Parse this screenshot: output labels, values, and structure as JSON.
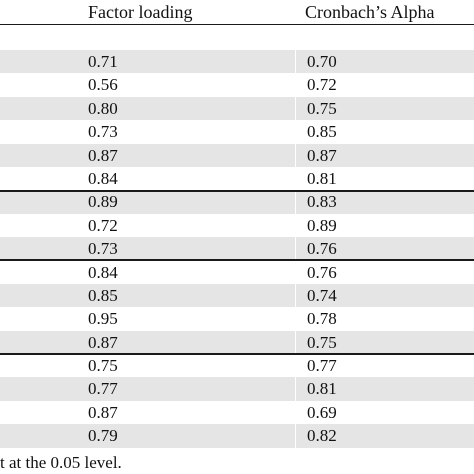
{
  "table": {
    "headers": {
      "factor_loading": "Factor loading",
      "cronbach_alpha": "Cronbach’s Alpha"
    },
    "rows": [
      {
        "factor": "0.71",
        "alpha": "0.70"
      },
      {
        "factor": "0.56",
        "alpha": "0.72"
      },
      {
        "factor": "0.80",
        "alpha": "0.75"
      },
      {
        "factor": "0.73",
        "alpha": "0.85"
      },
      {
        "factor": "0.87",
        "alpha": "0.87"
      },
      {
        "factor": "0.84",
        "alpha": "0.81"
      },
      {
        "factor": "0.89",
        "alpha": "0.83"
      },
      {
        "factor": "0.72",
        "alpha": "0.89"
      },
      {
        "factor": "0.73",
        "alpha": "0.76"
      },
      {
        "factor": "0.84",
        "alpha": "0.76"
      },
      {
        "factor": "0.85",
        "alpha": "0.74"
      },
      {
        "factor": "0.95",
        "alpha": "0.78"
      },
      {
        "factor": "0.87",
        "alpha": "0.75"
      },
      {
        "factor": "0.75",
        "alpha": "0.77"
      },
      {
        "factor": "0.77",
        "alpha": "0.81"
      },
      {
        "factor": "0.87",
        "alpha": "0.69"
      },
      {
        "factor": "0.79",
        "alpha": "0.82"
      }
    ],
    "shade_color": "#e5e5e5"
  },
  "footnote": "t at the 0.05 level."
}
